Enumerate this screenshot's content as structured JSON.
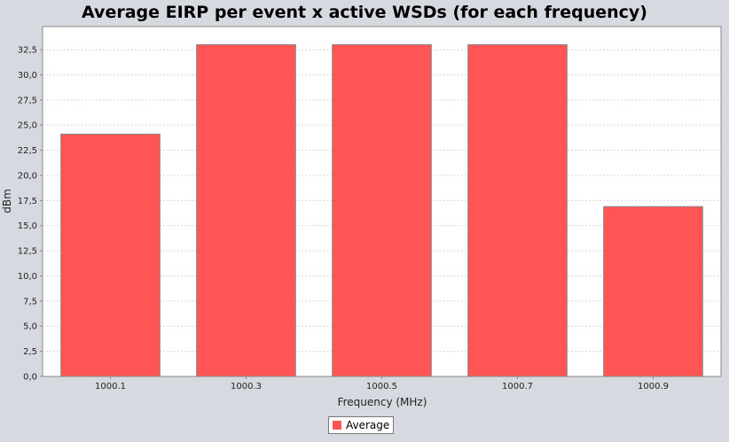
{
  "chart_data": {
    "type": "bar",
    "title": "Average EIRP per event x active WSDs (for each frequency)",
    "xlabel": "Frequency (MHz)",
    "ylabel": "dBm",
    "categories": [
      "1000.1",
      "1000.3",
      "1000.5",
      "1000.7",
      "1000.9"
    ],
    "series": [
      {
        "name": "Average",
        "values": [
          24.1,
          33.0,
          33.0,
          33.0,
          16.9
        ]
      }
    ],
    "ylim": [
      0,
      34.8
    ],
    "yticks": [
      0,
      2.5,
      5,
      7.5,
      10,
      12.5,
      15,
      17.5,
      20,
      22.5,
      25,
      27.5,
      30,
      32.5
    ],
    "ytick_labels": [
      "0,0",
      "2,5",
      "5,0",
      "7,5",
      "10,0",
      "12,5",
      "15,0",
      "17,5",
      "20,0",
      "22,5",
      "25,0",
      "27,5",
      "30,0",
      "32,5"
    ],
    "grid": true,
    "legend": "bottom-center",
    "bar_color": "#ff5555",
    "plot_background": "#ffffff",
    "page_background": "#d6d9df"
  }
}
